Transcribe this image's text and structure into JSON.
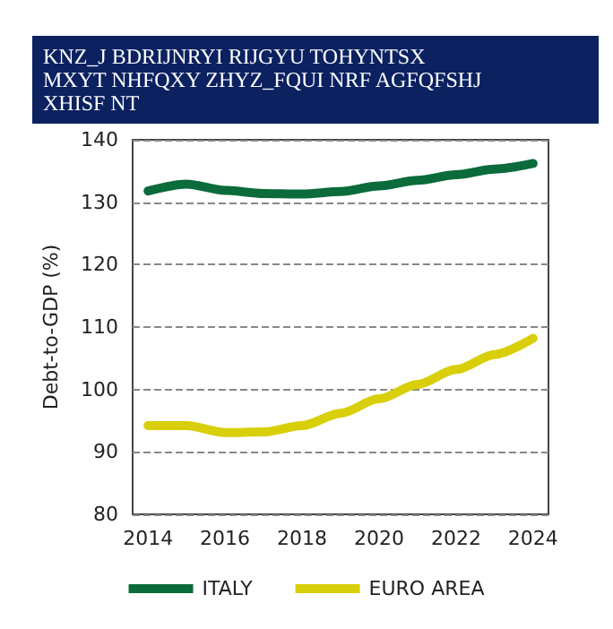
{
  "chart_data": {
    "type": "line",
    "title": "KNZ_J BDRIJNRYI RIJGYU TOHYNTSX\nMXYT NHFQXY ZHYZ_FQUI NRF AGFQFSHJ\nXHISF NT",
    "ylabel": "Debt-to-GDP (%)",
    "x": [
      2014,
      2015,
      2016,
      2017,
      2018,
      2019,
      2020,
      2021,
      2022,
      2023,
      2024
    ],
    "series": [
      {
        "name": "ITALY",
        "color": "#0b6b3a",
        "values": [
          131.8,
          132.9,
          131.9,
          131.4,
          131.3,
          131.7,
          132.6,
          133.5,
          134.4,
          135.3,
          136.2
        ]
      },
      {
        "name": "EURO AREA",
        "color": "#d8cf0a",
        "values": [
          94.2,
          94.2,
          93.1,
          93.2,
          94.2,
          96.2,
          98.5,
          100.8,
          103.2,
          105.6,
          108.2
        ]
      }
    ],
    "xlim": [
      2013.6,
      2024.4
    ],
    "xticks": [
      2014,
      2016,
      2018,
      2020,
      2022,
      2024
    ],
    "ylim": [
      80,
      140
    ],
    "yticks": [
      80,
      90,
      100,
      110,
      120,
      130,
      140
    ],
    "grid": "y",
    "legend": "bottom",
    "line_style": "solid",
    "marker": "none"
  }
}
